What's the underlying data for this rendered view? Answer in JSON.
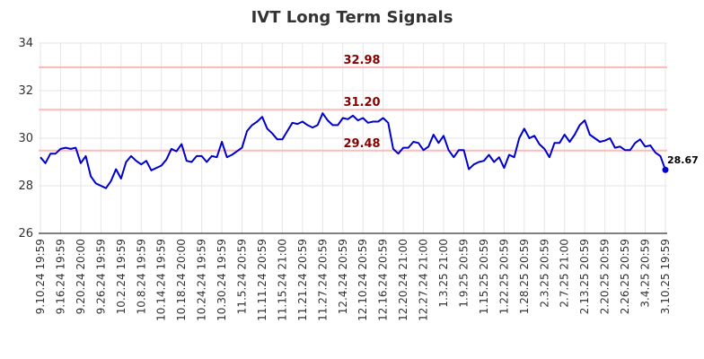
{
  "chart_data": {
    "type": "line",
    "title": "IVT Long Term Signals",
    "xlabel": "",
    "ylabel": "",
    "ylim": [
      26,
      34
    ],
    "yticks": [
      26,
      28,
      30,
      32,
      34
    ],
    "grid": true,
    "legend": "none",
    "colors": {
      "line": "#0000cc",
      "reference_line": "#ffbbbb",
      "reference_label": "#880000",
      "grid": "#e6e6e6",
      "axis": "#000000"
    },
    "x_tick_labels": [
      "9.10.24 19:59",
      "9.16.24 19:59",
      "9.20.24 20:00",
      "9.26.24 19:59",
      "10.2.24 19:59",
      "10.8.24 19:59",
      "10.14.24 19:59",
      "10.18.24 20:00",
      "10.24.24 19:59",
      "10.30.24 19:59",
      "11.5.24 20:59",
      "11.11.24 20:59",
      "11.15.24 21:00",
      "11.21.24 20:59",
      "11.27.24 20:59",
      "12.4.24 20:59",
      "12.10.24 20:59",
      "12.16.24 20:59",
      "12.20.24 21:00",
      "12.27.24 21:00",
      "1.3.25 21:00",
      "1.9.25 20:59",
      "1.15.25 20:59",
      "1.22.25 20:59",
      "1.28.25 20:59",
      "2.3.25 20:59",
      "2.7.25 21:00",
      "2.13.25 20:59",
      "2.20.25 20:59",
      "2.26.25 20:59",
      "3.4.25 20:59",
      "3.10.25 19:59"
    ],
    "reference_lines": [
      {
        "value": 32.98,
        "label": "32.98"
      },
      {
        "value": 31.2,
        "label": "31.20"
      },
      {
        "value": 29.48,
        "label": "29.48"
      }
    ],
    "last_label": "28.67",
    "values": [
      29.2,
      28.95,
      29.35,
      29.35,
      29.55,
      29.6,
      29.55,
      29.6,
      28.95,
      29.25,
      28.4,
      28.1,
      28.0,
      27.9,
      28.2,
      28.7,
      28.3,
      29.0,
      29.25,
      29.05,
      28.9,
      29.05,
      28.65,
      28.75,
      28.85,
      29.1,
      29.55,
      29.45,
      29.75,
      29.05,
      29.0,
      29.25,
      29.25,
      29.0,
      29.25,
      29.2,
      29.85,
      29.2,
      29.3,
      29.45,
      29.6,
      30.3,
      30.55,
      30.7,
      30.9,
      30.4,
      30.2,
      29.95,
      29.95,
      30.3,
      30.65,
      30.6,
      30.7,
      30.55,
      30.45,
      30.55,
      31.05,
      30.75,
      30.55,
      30.55,
      30.85,
      30.8,
      30.95,
      30.75,
      30.85,
      30.65,
      30.7,
      30.7,
      30.85,
      30.65,
      29.55,
      29.35,
      29.6,
      29.6,
      29.85,
      29.8,
      29.5,
      29.65,
      30.15,
      29.8,
      30.1,
      29.5,
      29.2,
      29.5,
      29.5,
      28.7,
      28.9,
      29.0,
      29.05,
      29.3,
      29.0,
      29.2,
      28.75,
      29.3,
      29.2,
      30.0,
      30.4,
      30.0,
      30.1,
      29.75,
      29.55,
      29.2,
      29.8,
      29.8,
      30.15,
      29.85,
      30.15,
      30.55,
      30.75,
      30.15,
      30.0,
      29.85,
      29.9,
      30.0,
      29.6,
      29.65,
      29.5,
      29.5,
      29.8,
      29.95,
      29.65,
      29.7,
      29.4,
      29.25,
      28.67
    ]
  }
}
